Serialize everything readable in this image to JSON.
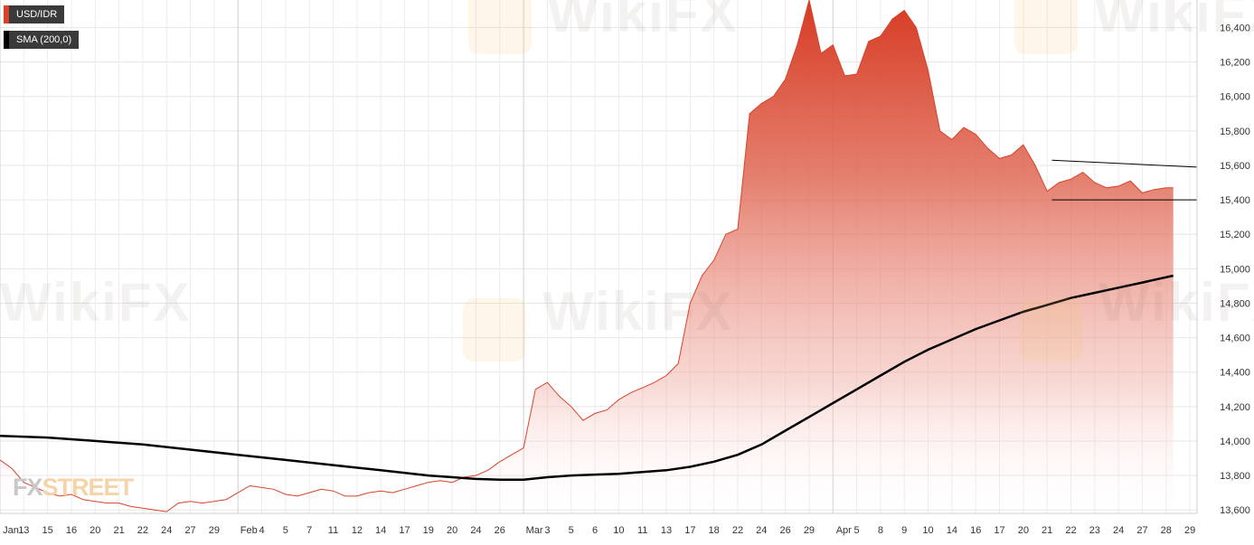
{
  "legend": {
    "series_label": "USD/IDR",
    "series_color": "#d9422a",
    "sma_label": "SMA (200,0)",
    "sma_color": "#000000"
  },
  "logo": {
    "prefix": "FX",
    "suffix": "STREET"
  },
  "watermark": {
    "text": "WikiFX"
  },
  "chart_data": {
    "type": "area",
    "grid": true,
    "legend_position": "top-left",
    "ylim": [
      13580,
      16560
    ],
    "y_ticks": [
      "13,600",
      "13,800",
      "14,000",
      "14,200",
      "14,400",
      "14,600",
      "14,800",
      "15,000",
      "15,200",
      "15,400",
      "15,600",
      "15,800",
      "16,000",
      "16,200",
      "16,400"
    ],
    "y_tick_values": [
      13600,
      13800,
      14000,
      14200,
      14400,
      14600,
      14800,
      15000,
      15200,
      15400,
      15600,
      15800,
      16000,
      16200,
      16400
    ],
    "x_ticks": [
      {
        "label": "Jan",
        "month_start": true
      },
      {
        "label": "13"
      },
      {
        "label": "15"
      },
      {
        "label": "16"
      },
      {
        "label": "20"
      },
      {
        "label": "21"
      },
      {
        "label": "22"
      },
      {
        "label": "24"
      },
      {
        "label": "27"
      },
      {
        "label": "29"
      },
      {
        "label": "Feb",
        "month_start": true
      },
      {
        "label": "4"
      },
      {
        "label": "5"
      },
      {
        "label": "7"
      },
      {
        "label": "11"
      },
      {
        "label": "12"
      },
      {
        "label": "14"
      },
      {
        "label": "17"
      },
      {
        "label": "19"
      },
      {
        "label": "20"
      },
      {
        "label": "24"
      },
      {
        "label": "26"
      },
      {
        "label": "Mar",
        "month_start": true
      },
      {
        "label": "3"
      },
      {
        "label": "5"
      },
      {
        "label": "6"
      },
      {
        "label": "10"
      },
      {
        "label": "11"
      },
      {
        "label": "13"
      },
      {
        "label": "17"
      },
      {
        "label": "18"
      },
      {
        "label": "22"
      },
      {
        "label": "24"
      },
      {
        "label": "26"
      },
      {
        "label": "29"
      },
      {
        "label": "Apr",
        "month_start": true
      },
      {
        "label": "5"
      },
      {
        "label": "8"
      },
      {
        "label": "9"
      },
      {
        "label": "10"
      },
      {
        "label": "14"
      },
      {
        "label": "16"
      },
      {
        "label": "17"
      },
      {
        "label": "20"
      },
      {
        "label": "21"
      },
      {
        "label": "22"
      },
      {
        "label": "23"
      },
      {
        "label": "24"
      },
      {
        "label": "27"
      },
      {
        "label": "28"
      },
      {
        "label": "29"
      }
    ],
    "x_range": [
      0,
      50.3
    ],
    "series": [
      {
        "name": "USD/IDR",
        "color": "#d9422a",
        "style": "area",
        "x": [
          0,
          0.5,
          1,
          1.5,
          2,
          2.5,
          3,
          3.5,
          4,
          4.5,
          5,
          5.5,
          6,
          6.5,
          7,
          7.5,
          8,
          8.5,
          9,
          9.5,
          10,
          10.5,
          11,
          11.5,
          12,
          12.5,
          13,
          13.5,
          14,
          14.5,
          15,
          15.5,
          16,
          16.5,
          17,
          17.5,
          18,
          18.5,
          19,
          19.5,
          20,
          20.5,
          21,
          21.5,
          22,
          22.5,
          23,
          23.5,
          24,
          24.5,
          25,
          25.5,
          26,
          26.5,
          27,
          27.5,
          28,
          28.5,
          29,
          29.5,
          30,
          30.5,
          31,
          31.5,
          32,
          32.5,
          33,
          33.5,
          34,
          34.5,
          35,
          35.5,
          36,
          36.5,
          37,
          37.5,
          38,
          38.5,
          39,
          39.5,
          40,
          40.5,
          41,
          41.5,
          42,
          42.5,
          43,
          43.5,
          44,
          44.5,
          45,
          45.5,
          46,
          46.5,
          47,
          47.5,
          48,
          48.5,
          49,
          49.3
        ],
        "values": [
          13890,
          13840,
          13760,
          13730,
          13700,
          13680,
          13690,
          13660,
          13650,
          13640,
          13640,
          13620,
          13610,
          13600,
          13590,
          13640,
          13650,
          13640,
          13650,
          13660,
          13700,
          13740,
          13730,
          13720,
          13690,
          13680,
          13700,
          13720,
          13710,
          13680,
          13680,
          13700,
          13710,
          13700,
          13720,
          13740,
          13760,
          13770,
          13760,
          13790,
          13800,
          13830,
          13880,
          13920,
          13960,
          14300,
          14340,
          14260,
          14200,
          14120,
          14160,
          14180,
          14240,
          14280,
          14310,
          14340,
          14380,
          14450,
          14800,
          14960,
          15050,
          15200,
          15230,
          15900,
          15960,
          16000,
          16100,
          16300,
          16560,
          16250,
          16300,
          16120,
          16130,
          16320,
          16350,
          16450,
          16500,
          16400,
          16150,
          15800,
          15750,
          15820,
          15780,
          15700,
          15640,
          15660,
          15720,
          15600,
          15450,
          15500,
          15520,
          15560,
          15500,
          15470,
          15480,
          15510,
          15440,
          15460,
          15470,
          15470
        ]
      },
      {
        "name": "SMA (200,0)",
        "color": "#000000",
        "style": "line",
        "x": [
          0,
          2,
          4,
          6,
          8,
          10,
          12,
          14,
          16,
          18,
          20,
          21,
          22,
          23,
          24,
          25,
          26,
          28,
          29,
          30,
          31,
          32,
          33,
          34,
          35,
          36,
          37,
          38,
          39,
          40,
          41,
          42,
          43,
          44,
          45,
          46,
          47,
          48,
          49.3
        ],
        "values": [
          14030,
          14020,
          14000,
          13980,
          13950,
          13920,
          13890,
          13860,
          13830,
          13800,
          13780,
          13775,
          13775,
          13790,
          13800,
          13805,
          13810,
          13830,
          13850,
          13880,
          13920,
          13980,
          14060,
          14140,
          14220,
          14300,
          14380,
          14460,
          14530,
          14590,
          14650,
          14700,
          14750,
          14790,
          14830,
          14860,
          14890,
          14920,
          14960
        ]
      }
    ],
    "annotations": [
      {
        "type": "line",
        "x1": 44.2,
        "y1": 15630,
        "x2": 50.3,
        "y2": 15590
      },
      {
        "type": "line",
        "x1": 44.2,
        "y1": 15400,
        "x2": 50.3,
        "y2": 15400
      }
    ]
  }
}
